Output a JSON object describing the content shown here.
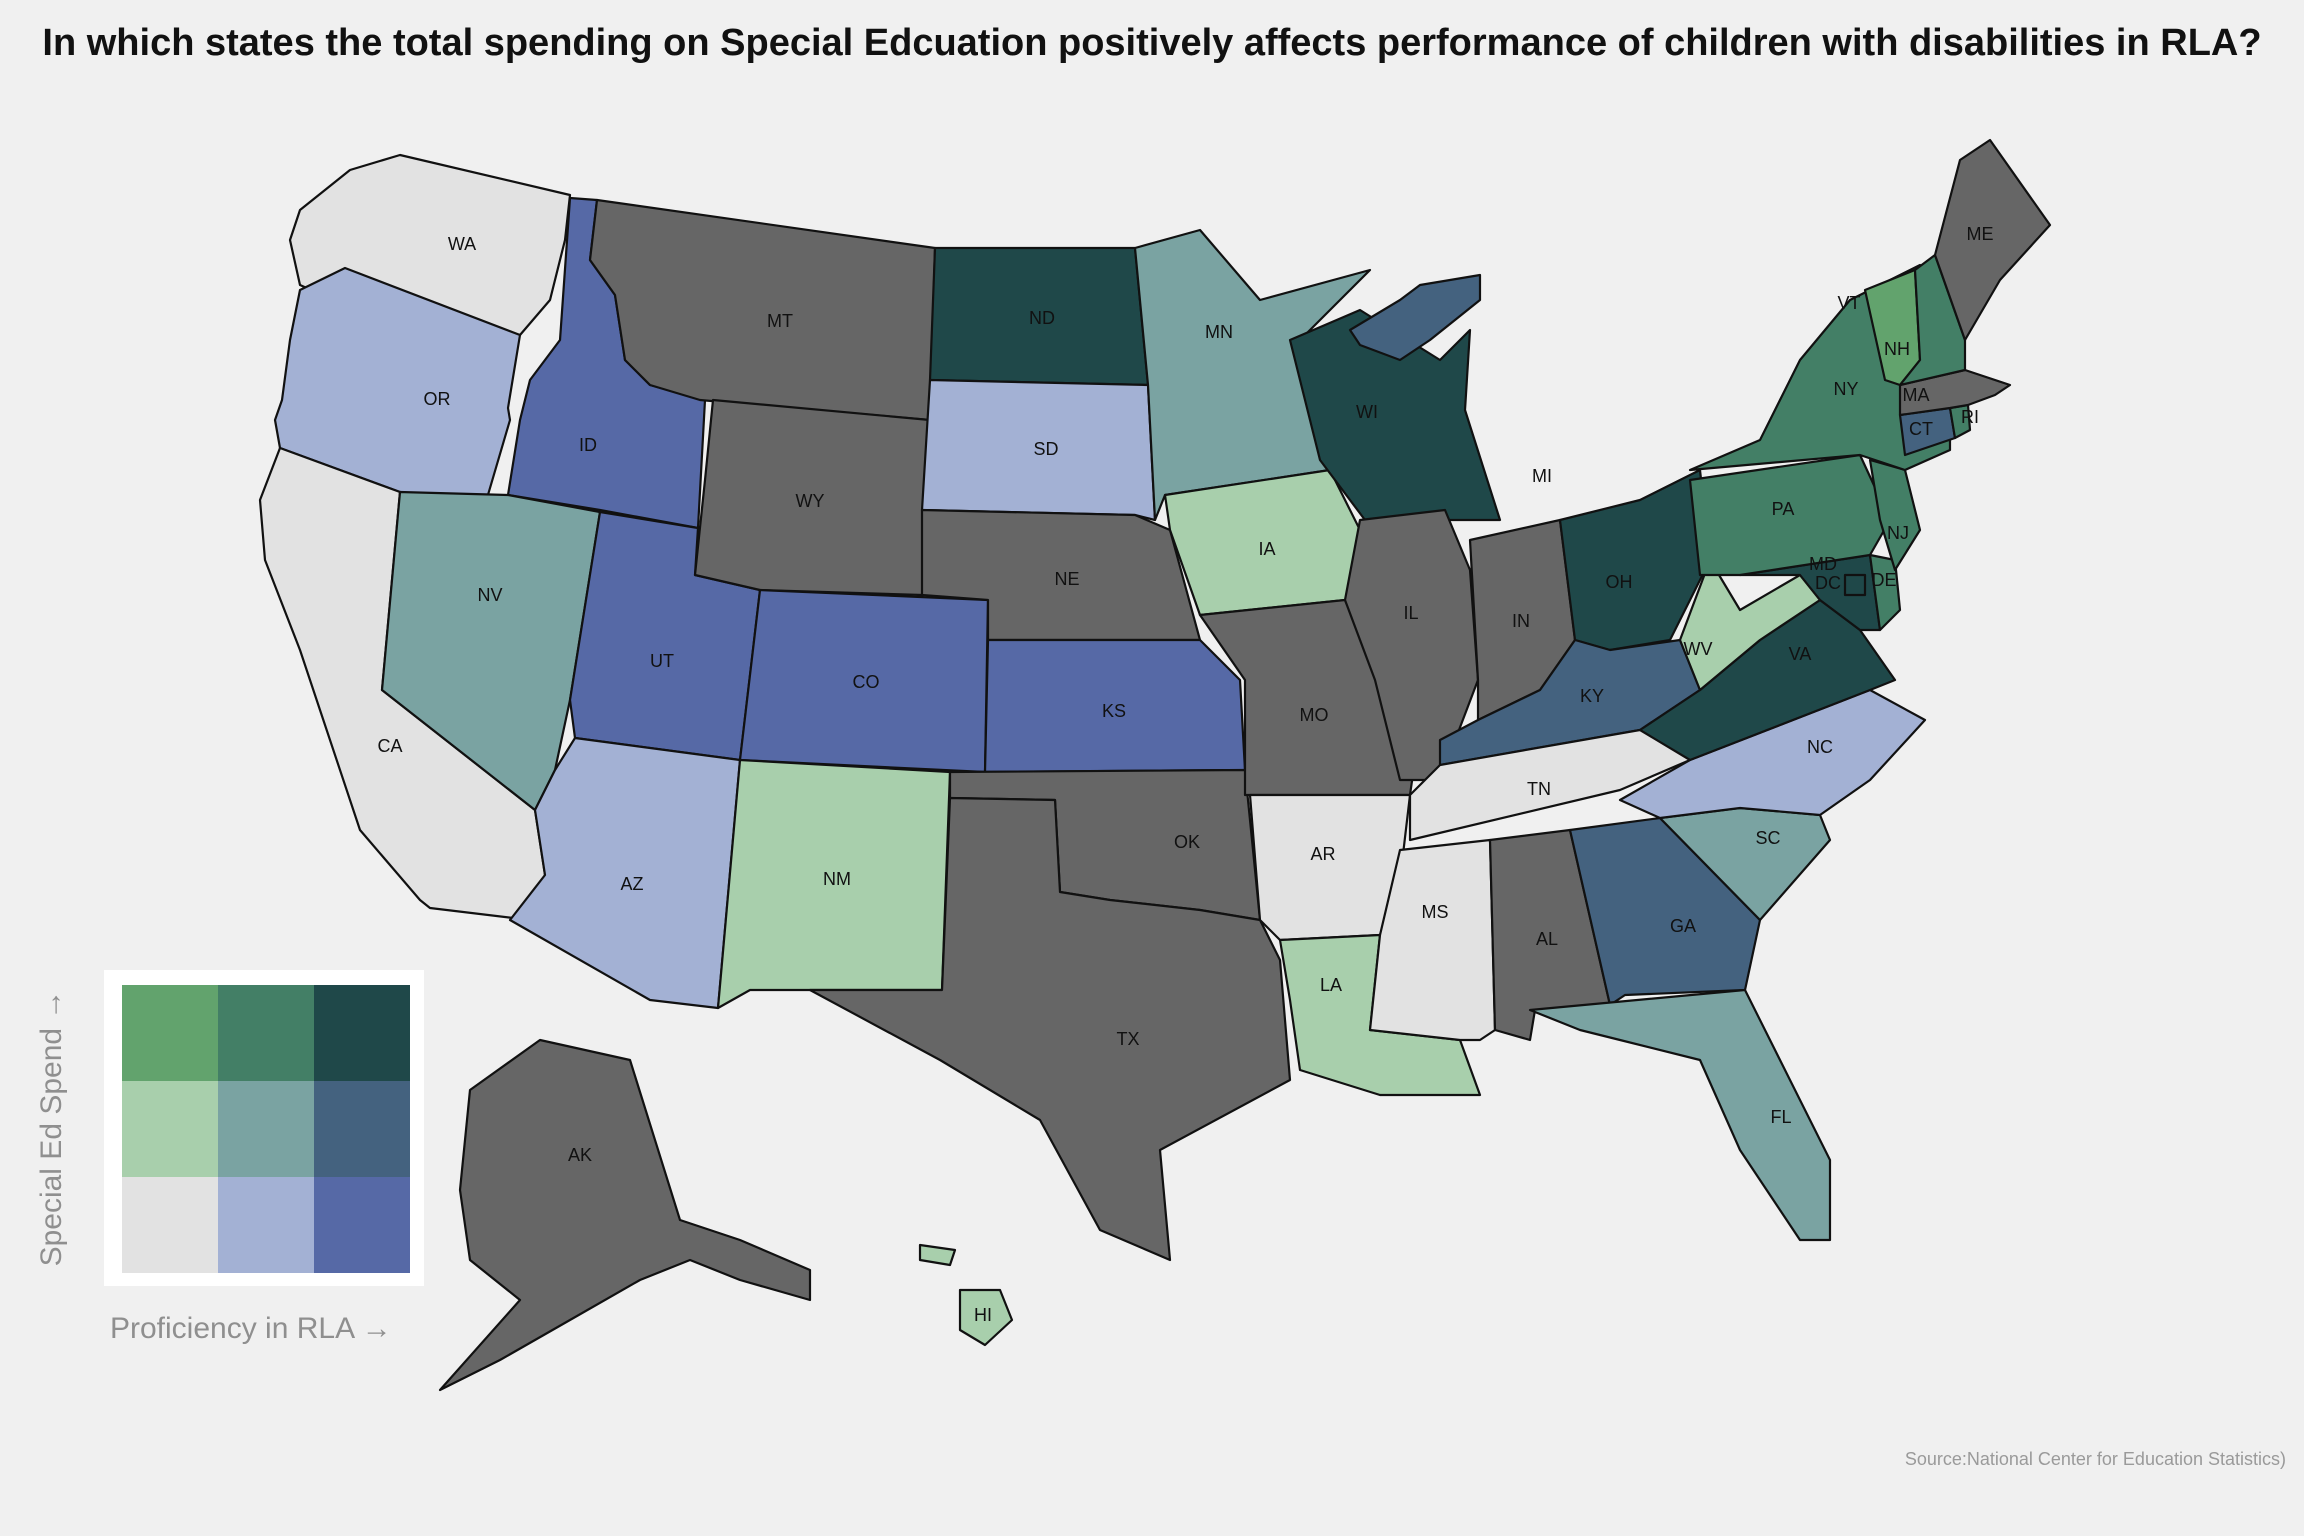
{
  "title": "In which states the total spending on Special Edcuation positively affects performance of children with disabilities in RLA?",
  "source": "Source:National Center for Education Statistics)",
  "legend": {
    "x_label": "Proficiency in RLA →",
    "y_label": "Special Ed Spend →",
    "colors": {
      "high_low": "#62a36d",
      "high_mid": "#437f66",
      "high_high": "#1f4849",
      "mid_low": "#a8cfac",
      "mid_mid": "#7aa3a2",
      "mid_high": "#44627f",
      "low_low": "#e2e2e2",
      "low_mid": "#a3b1d4",
      "low_high": "#5669a6",
      "no_data": "#666666"
    }
  },
  "states": [
    {
      "abbr": "WA",
      "class": "low_low"
    },
    {
      "abbr": "OR",
      "class": "low_mid"
    },
    {
      "abbr": "CA",
      "class": "low_low"
    },
    {
      "abbr": "ID",
      "class": "low_high"
    },
    {
      "abbr": "NV",
      "class": "mid_mid"
    },
    {
      "abbr": "UT",
      "class": "low_high"
    },
    {
      "abbr": "AZ",
      "class": "low_mid"
    },
    {
      "abbr": "MT",
      "class": "no_data"
    },
    {
      "abbr": "WY",
      "class": "no_data"
    },
    {
      "abbr": "CO",
      "class": "low_high"
    },
    {
      "abbr": "NM",
      "class": "mid_low"
    },
    {
      "abbr": "ND",
      "class": "high_high"
    },
    {
      "abbr": "SD",
      "class": "low_mid"
    },
    {
      "abbr": "NE",
      "class": "no_data"
    },
    {
      "abbr": "KS",
      "class": "low_high"
    },
    {
      "abbr": "OK",
      "class": "no_data"
    },
    {
      "abbr": "TX",
      "class": "no_data"
    },
    {
      "abbr": "MN",
      "class": "mid_mid"
    },
    {
      "abbr": "IA",
      "class": "mid_low"
    },
    {
      "abbr": "MO",
      "class": "no_data"
    },
    {
      "abbr": "AR",
      "class": "low_low"
    },
    {
      "abbr": "LA",
      "class": "mid_low"
    },
    {
      "abbr": "WI",
      "class": "high_high"
    },
    {
      "abbr": "IL",
      "class": "no_data"
    },
    {
      "abbr": "MI",
      "class": "mid_high"
    },
    {
      "abbr": "IN",
      "class": "no_data"
    },
    {
      "abbr": "OH",
      "class": "high_high"
    },
    {
      "abbr": "KY",
      "class": "mid_high"
    },
    {
      "abbr": "TN",
      "class": "low_low"
    },
    {
      "abbr": "MS",
      "class": "low_low"
    },
    {
      "abbr": "AL",
      "class": "no_data"
    },
    {
      "abbr": "GA",
      "class": "mid_high"
    },
    {
      "abbr": "FL",
      "class": "mid_mid"
    },
    {
      "abbr": "SC",
      "class": "mid_mid"
    },
    {
      "abbr": "NC",
      "class": "low_mid"
    },
    {
      "abbr": "VA",
      "class": "high_high"
    },
    {
      "abbr": "WV",
      "class": "mid_low"
    },
    {
      "abbr": "MD",
      "class": "high_high"
    },
    {
      "abbr": "DE",
      "class": "high_mid"
    },
    {
      "abbr": "DC",
      "class": "high_high"
    },
    {
      "abbr": "PA",
      "class": "high_mid"
    },
    {
      "abbr": "NJ",
      "class": "high_mid"
    },
    {
      "abbr": "NY",
      "class": "high_mid"
    },
    {
      "abbr": "CT",
      "class": "mid_high"
    },
    {
      "abbr": "RI",
      "class": "high_mid"
    },
    {
      "abbr": "MA",
      "class": "no_data"
    },
    {
      "abbr": "VT",
      "class": "high_low"
    },
    {
      "abbr": "NH",
      "class": "high_mid"
    },
    {
      "abbr": "ME",
      "class": "no_data"
    },
    {
      "abbr": "AK",
      "class": "no_data"
    },
    {
      "abbr": "HI",
      "class": "mid_low"
    }
  ]
}
